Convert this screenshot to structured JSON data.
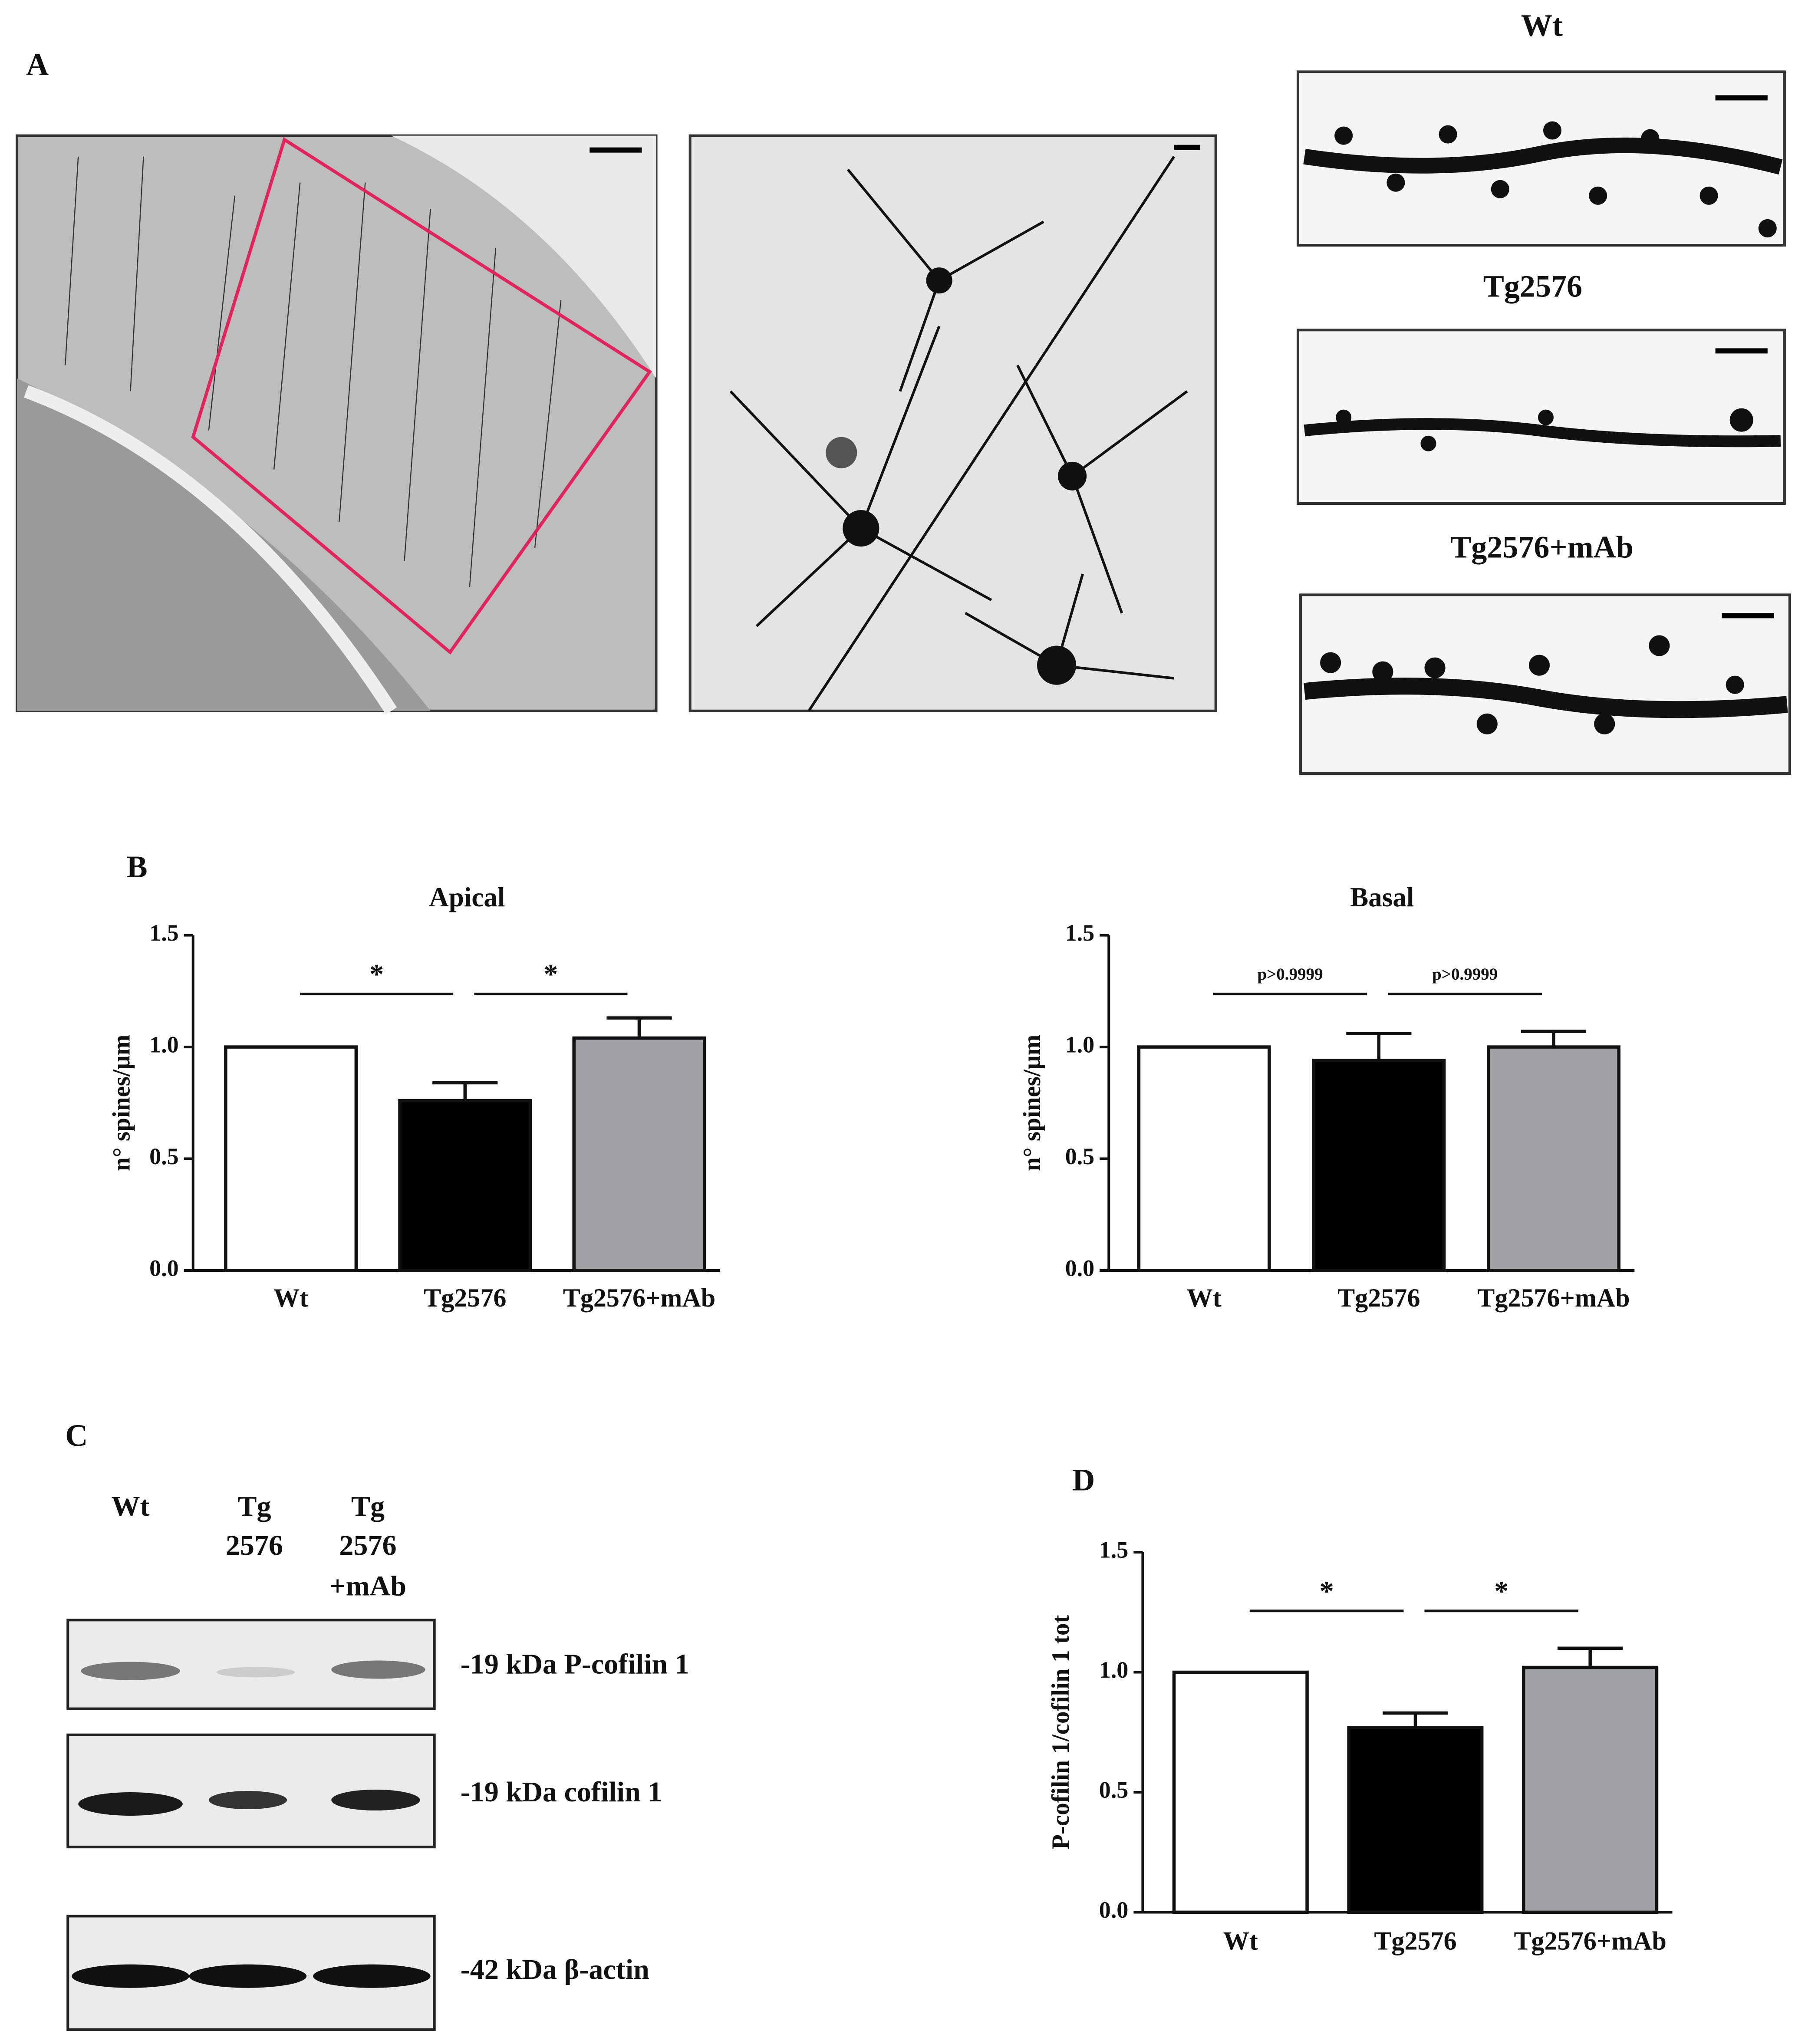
{
  "panel_labels": [
    "A",
    "B",
    "C",
    "D"
  ],
  "micrographs": {
    "labels": [
      "Wt",
      "Tg2576",
      "Tg2576+mAb"
    ]
  },
  "blot": {
    "lanes": [
      [
        "Wt"
      ],
      [
        "Tg",
        "2576"
      ],
      [
        "Tg",
        "2576",
        "+mAb"
      ]
    ],
    "bands": [
      "-19 kDa P-cofilin 1",
      "-19 kDa cofilin 1",
      "-42 kDa β-actin"
    ]
  },
  "chart_data": [
    {
      "type": "bar",
      "title": "Apical",
      "y_label": "n° spines/µm",
      "categories": [
        "Wt",
        "Tg2576",
        "Tg2576+mAb"
      ],
      "values": [
        1.0,
        0.76,
        1.04
      ],
      "errors": [
        null,
        0.08,
        0.09
      ],
      "colors": [
        "#ffffff",
        "#000000",
        "#a0a1a5"
      ],
      "annotations": [
        "*",
        "*"
      ],
      "ylim": [
        0,
        1.5
      ],
      "yticks": [
        {
          "value": 0,
          "label": "0.0"
        },
        0.5,
        {
          "value": 1,
          "label": "1.0"
        },
        1.5
      ]
    },
    {
      "type": "bar",
      "title": "Basal",
      "y_label": "n° spines/µm",
      "categories": [
        "Wt",
        "Tg2576",
        "Tg2576+mAb"
      ],
      "values": [
        1.0,
        0.94,
        1.0
      ],
      "errors": [
        null,
        0.12,
        0.07
      ],
      "colors": [
        "#ffffff",
        "#000000",
        "#a0a1a5"
      ],
      "annotations": [
        "p>0.9999",
        "p>0.9999"
      ],
      "ylim": [
        0,
        1.5
      ],
      "yticks": [
        {
          "value": 0,
          "label": "0.0"
        },
        0.5,
        {
          "value": 1,
          "label": "1.0"
        },
        1.5
      ]
    },
    {
      "type": "bar",
      "y_label": "P-cofilin 1/cofilin 1 tot",
      "categories": [
        "Wt",
        "Tg2576",
        "Tg2576+mAb"
      ],
      "values": [
        1.0,
        0.77,
        1.02
      ],
      "errors": [
        null,
        0.06,
        0.08
      ],
      "colors": [
        "#ffffff",
        "#000000",
        "#a0a1a5"
      ],
      "annotations": [
        "*",
        "*"
      ],
      "ylim": [
        0,
        1.5
      ],
      "yticks": [
        {
          "value": 0,
          "label": "0.0"
        },
        0.5,
        {
          "value": 1,
          "label": "1.0"
        },
        1.5
      ]
    }
  ]
}
